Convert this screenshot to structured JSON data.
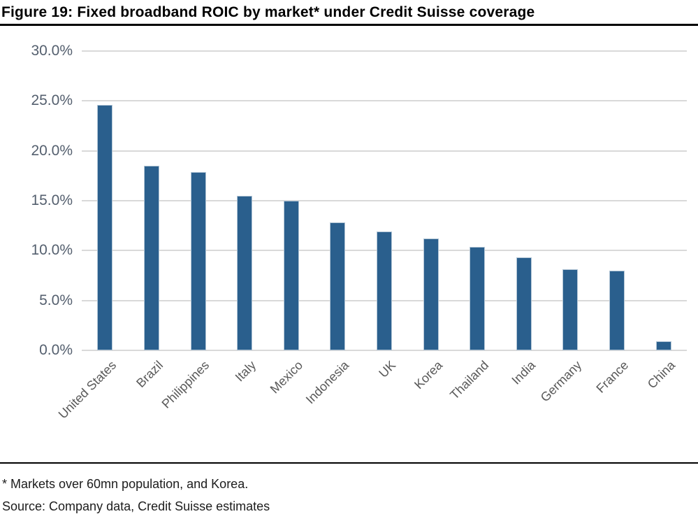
{
  "header": {
    "title": "Figure 19: Fixed broadband ROIC by market* under Credit Suisse coverage"
  },
  "chart_data": {
    "type": "bar",
    "title": "Figure 19: Fixed broadband ROIC by market* under Credit Suisse coverage",
    "categories": [
      "United States",
      "Brazil",
      "Philippines",
      "Italy",
      "Mexico",
      "Indonesia",
      "UK",
      "Korea",
      "Thailand",
      "India",
      "Germany",
      "France",
      "China"
    ],
    "values": [
      24.6,
      18.5,
      17.9,
      15.5,
      15.0,
      12.8,
      11.9,
      11.2,
      10.4,
      9.3,
      8.1,
      8.0,
      0.9
    ],
    "xlabel": "",
    "ylabel": "",
    "ylim": [
      0,
      30
    ],
    "ytick_step": 5,
    "ytick_labels": [
      "0.0%",
      "5.0%",
      "10.0%",
      "15.0%",
      "20.0%",
      "25.0%",
      "30.0%"
    ],
    "grid": true,
    "legend": "none",
    "bar_color": "#2a5f8d",
    "bar_edge_color": "#b3c6d6",
    "gridline_color": "#d9d9d9",
    "ytick_label_color": "#545f6e",
    "xtick_label_color": "#595959"
  },
  "footer": {
    "footnote": "* Markets over 60mn population, and Korea.",
    "source": "Source: Company data, Credit Suisse estimates"
  }
}
